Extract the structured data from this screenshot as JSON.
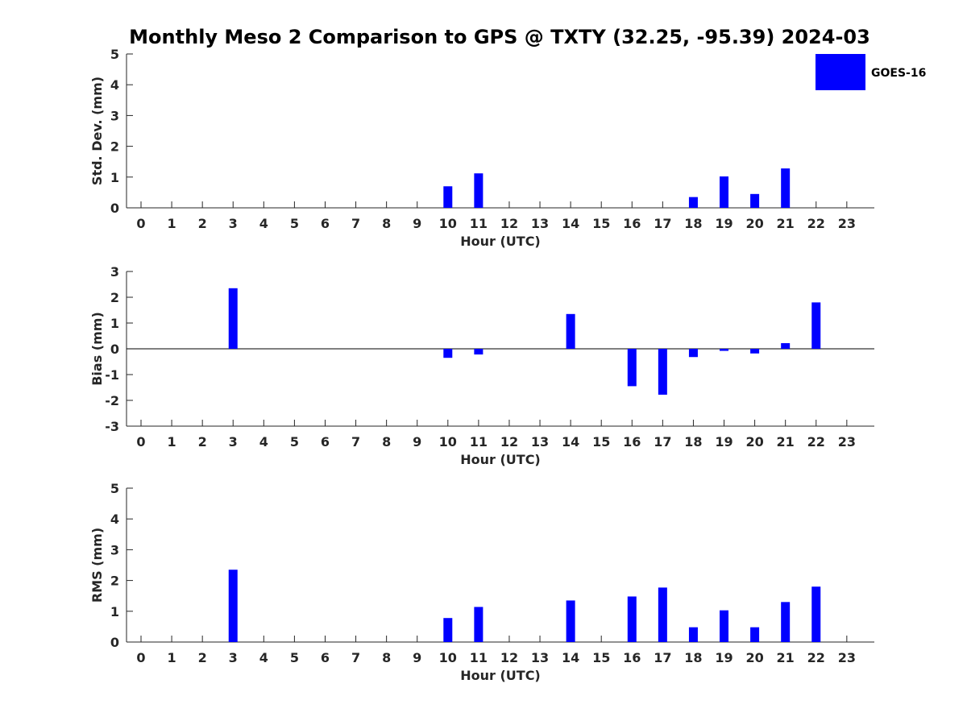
{
  "chart_data": {
    "type": "bar",
    "title": "Monthly Meso 2 Comparison to GPS @ TXTY (32.25, -95.39) 2024-03",
    "legend": {
      "placement": "top-right",
      "entries": [
        {
          "name": "GOES-16",
          "color": "#0000ff"
        }
      ]
    },
    "bar_color": "#0000ff",
    "categories": [
      "0",
      "1",
      "2",
      "3",
      "4",
      "5",
      "6",
      "7",
      "8",
      "9",
      "10",
      "11",
      "12",
      "13",
      "14",
      "15",
      "16",
      "17",
      "18",
      "19",
      "20",
      "21",
      "22",
      "23"
    ],
    "subplots": [
      {
        "key": "std",
        "ylabel": "Std. Dev. (mm)",
        "xlabel": "Hour (UTC)",
        "ylim": [
          0,
          5
        ],
        "yticks": [
          "0",
          "1",
          "2",
          "3",
          "4",
          "5"
        ],
        "series": [
          {
            "name": "GOES-16",
            "values": [
              null,
              null,
              null,
              null,
              null,
              null,
              null,
              null,
              null,
              null,
              0.7,
              1.12,
              null,
              null,
              null,
              null,
              null,
              null,
              0.35,
              1.02,
              0.45,
              1.28,
              null,
              null
            ]
          }
        ]
      },
      {
        "key": "bias",
        "ylabel": "Bias (mm)",
        "xlabel": "Hour (UTC)",
        "ylim": [
          -3,
          3
        ],
        "yticks": [
          "-3",
          "-2",
          "-1",
          "0",
          "1",
          "2",
          "3"
        ],
        "zero_line": true,
        "series": [
          {
            "name": "GOES-16",
            "values": [
              null,
              null,
              null,
              2.35,
              null,
              null,
              null,
              null,
              null,
              null,
              -0.35,
              -0.22,
              null,
              null,
              1.35,
              null,
              -1.45,
              -1.78,
              -0.32,
              -0.08,
              -0.18,
              0.22,
              1.8,
              null
            ]
          }
        ]
      },
      {
        "key": "rms",
        "ylabel": "RMS (mm)",
        "xlabel": "Hour (UTC)",
        "ylim": [
          0,
          5
        ],
        "yticks": [
          "0",
          "1",
          "2",
          "3",
          "4",
          "5"
        ],
        "series": [
          {
            "name": "GOES-16",
            "values": [
              null,
              null,
              null,
              2.35,
              null,
              null,
              null,
              null,
              null,
              null,
              0.78,
              1.14,
              null,
              null,
              1.35,
              null,
              1.48,
              1.77,
              0.48,
              1.03,
              0.48,
              1.3,
              1.8,
              null
            ]
          }
        ]
      }
    ]
  }
}
